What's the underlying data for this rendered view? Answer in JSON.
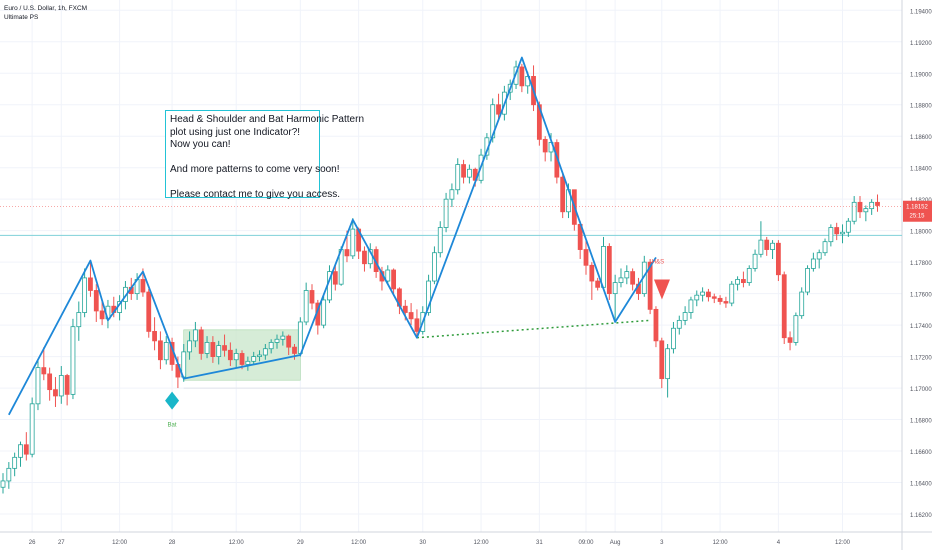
{
  "header": {
    "symbol": "Euro / U.S. Dollar, 1h, FXCM",
    "indicator": "Ultimate PS"
  },
  "annotation": {
    "lines": [
      "Head & Shoulder and Bat Harmonic Pattern",
      "plot using just one Indicator?!",
      "Now you can!",
      "",
      "And more patterns to come very soon!",
      "",
      "Please contact me to give you access."
    ]
  },
  "price_tag": {
    "price": "1.18152",
    "countdown": "25:15"
  },
  "colors": {
    "up": "#26a69a",
    "down": "#ef5350",
    "zigzag": "#1e88d8",
    "neckline": "#2e9b3a",
    "box_fill": "#c8e6c9",
    "horizontal": "#7fd1d8",
    "marker": "#19b6c9"
  },
  "chart_data": {
    "type": "candlestick",
    "title": "Euro / U.S. Dollar, 1h, FXCM",
    "xlabel": "",
    "ylabel": "",
    "ylim": [
      1.1615,
      1.195
    ],
    "grid": true,
    "y_ticks": [
      "1.19400",
      "1.19200",
      "1.19000",
      "1.18800",
      "1.18600",
      "1.18400",
      "1.18200",
      "1.18000",
      "1.17800",
      "1.17600",
      "1.17400",
      "1.17200",
      "1.17000",
      "1.16800",
      "1.16600",
      "1.16400",
      "1.16200"
    ],
    "x_ticks": [
      "26",
      "27",
      "12:00",
      "28",
      "12:00",
      "29",
      "12:00",
      "30",
      "12:00",
      "31",
      "09:00",
      "Aug",
      "3",
      "12:00",
      "4",
      "12:00"
    ],
    "current_price": 1.18152,
    "horizontal_level": 1.1797,
    "zigzag": [
      {
        "bar": 1,
        "price": 1.1683
      },
      {
        "bar": 15,
        "price": 1.1781
      },
      {
        "bar": 18,
        "price": 1.1743
      },
      {
        "bar": 24,
        "price": 1.1774
      },
      {
        "bar": 31,
        "price": 1.1706
      },
      {
        "bar": 51,
        "price": 1.1721
      },
      {
        "bar": 60,
        "price": 1.1807
      },
      {
        "bar": 71,
        "price": 1.1732
      },
      {
        "bar": 89,
        "price": 1.191
      },
      {
        "bar": 105,
        "price": 1.1742
      },
      {
        "bar": 112,
        "price": 1.1783
      }
    ],
    "neckline": [
      {
        "bar": 71,
        "price": 1.1732
      },
      {
        "bar": 111,
        "price": 1.1743
      }
    ],
    "bat_zone": {
      "bar_from": 31,
      "bar_to": 51,
      "price_low": 1.1705,
      "price_high": 1.1737
    },
    "support_line": {
      "bar_from": 31,
      "bar_to": 113,
      "price": 1.17
    },
    "bat_marker": {
      "bar": 29,
      "price": 1.1692,
      "label": "Bat"
    },
    "hs_marker": {
      "bar": 112,
      "price": 1.1769,
      "label": "H&S"
    },
    "candles": [
      [
        1.1637,
        1.1646,
        1.1633,
        1.1641
      ],
      [
        1.1641,
        1.1653,
        1.1636,
        1.1649
      ],
      [
        1.1649,
        1.1659,
        1.1644,
        1.1656
      ],
      [
        1.1656,
        1.1666,
        1.165,
        1.1664
      ],
      [
        1.1664,
        1.1672,
        1.1654,
        1.1658
      ],
      [
        1.1658,
        1.1694,
        1.1656,
        1.169
      ],
      [
        1.169,
        1.1718,
        1.1686,
        1.1713
      ],
      [
        1.1713,
        1.1726,
        1.1705,
        1.1709
      ],
      [
        1.1709,
        1.1713,
        1.1692,
        1.1699
      ],
      [
        1.1699,
        1.1707,
        1.1688,
        1.1695
      ],
      [
        1.1695,
        1.1714,
        1.169,
        1.1708
      ],
      [
        1.1708,
        1.1709,
        1.1689,
        1.1696
      ],
      [
        1.1696,
        1.1744,
        1.1693,
        1.1739
      ],
      [
        1.1739,
        1.1755,
        1.173,
        1.1748
      ],
      [
        1.1748,
        1.1776,
        1.1745,
        1.177
      ],
      [
        1.177,
        1.178,
        1.1758,
        1.1762
      ],
      [
        1.1762,
        1.1766,
        1.1742,
        1.1749
      ],
      [
        1.1749,
        1.1755,
        1.174,
        1.1744
      ],
      [
        1.1744,
        1.1756,
        1.1738,
        1.1752
      ],
      [
        1.1752,
        1.1758,
        1.1745,
        1.1748
      ],
      [
        1.1748,
        1.1759,
        1.1743,
        1.1755
      ],
      [
        1.1755,
        1.1768,
        1.175,
        1.1764
      ],
      [
        1.1764,
        1.177,
        1.1756,
        1.176
      ],
      [
        1.176,
        1.1773,
        1.1756,
        1.1769
      ],
      [
        1.1769,
        1.1776,
        1.1758,
        1.1761
      ],
      [
        1.1761,
        1.1763,
        1.1732,
        1.1736
      ],
      [
        1.1736,
        1.1745,
        1.1724,
        1.173
      ],
      [
        1.173,
        1.1736,
        1.1712,
        1.1718
      ],
      [
        1.1718,
        1.1733,
        1.1715,
        1.1729
      ],
      [
        1.1729,
        1.1732,
        1.1711,
        1.1715
      ],
      [
        1.1715,
        1.172,
        1.17,
        1.1707
      ],
      [
        1.1707,
        1.1728,
        1.1704,
        1.1723
      ],
      [
        1.1723,
        1.1736,
        1.1718,
        1.173
      ],
      [
        1.173,
        1.1742,
        1.1726,
        1.1737
      ],
      [
        1.1737,
        1.1739,
        1.1718,
        1.1722
      ],
      [
        1.1722,
        1.1733,
        1.1719,
        1.1729
      ],
      [
        1.1729,
        1.1733,
        1.1716,
        1.172
      ],
      [
        1.172,
        1.173,
        1.1715,
        1.1727
      ],
      [
        1.1727,
        1.1734,
        1.172,
        1.1724
      ],
      [
        1.1724,
        1.1729,
        1.1714,
        1.1718
      ],
      [
        1.1718,
        1.1725,
        1.1713,
        1.1722
      ],
      [
        1.1722,
        1.1724,
        1.1712,
        1.1715
      ],
      [
        1.1715,
        1.172,
        1.1711,
        1.1717
      ],
      [
        1.1717,
        1.1723,
        1.1715,
        1.172
      ],
      [
        1.172,
        1.1724,
        1.1717,
        1.1721
      ],
      [
        1.1721,
        1.1728,
        1.1718,
        1.1725
      ],
      [
        1.1725,
        1.1731,
        1.1722,
        1.1729
      ],
      [
        1.1729,
        1.1734,
        1.1725,
        1.1731
      ],
      [
        1.1731,
        1.1736,
        1.1727,
        1.1733
      ],
      [
        1.1733,
        1.1734,
        1.1721,
        1.1726
      ],
      [
        1.1726,
        1.1728,
        1.1718,
        1.1722
      ],
      [
        1.1722,
        1.1745,
        1.172,
        1.1742
      ],
      [
        1.1742,
        1.1767,
        1.174,
        1.1762
      ],
      [
        1.1762,
        1.1766,
        1.175,
        1.1754
      ],
      [
        1.1754,
        1.1756,
        1.1734,
        1.174
      ],
      [
        1.174,
        1.176,
        1.1738,
        1.1756
      ],
      [
        1.1756,
        1.1778,
        1.1754,
        1.1774
      ],
      [
        1.1774,
        1.1779,
        1.1762,
        1.1766
      ],
      [
        1.1766,
        1.179,
        1.1765,
        1.1788
      ],
      [
        1.1788,
        1.18,
        1.178,
        1.1784
      ],
      [
        1.1784,
        1.1808,
        1.1782,
        1.1801
      ],
      [
        1.1801,
        1.1802,
        1.1782,
        1.1787
      ],
      [
        1.1787,
        1.179,
        1.1774,
        1.1779
      ],
      [
        1.1779,
        1.1792,
        1.1776,
        1.1788
      ],
      [
        1.1788,
        1.179,
        1.177,
        1.1774
      ],
      [
        1.1774,
        1.1777,
        1.1762,
        1.1768
      ],
      [
        1.1768,
        1.1778,
        1.1766,
        1.1775
      ],
      [
        1.1775,
        1.1776,
        1.176,
        1.1763
      ],
      [
        1.1763,
        1.1764,
        1.1747,
        1.1752
      ],
      [
        1.1752,
        1.1756,
        1.1743,
        1.1748
      ],
      [
        1.1748,
        1.1754,
        1.174,
        1.1744
      ],
      [
        1.1744,
        1.175,
        1.1732,
        1.1736
      ],
      [
        1.1736,
        1.1752,
        1.1734,
        1.1748
      ],
      [
        1.1748,
        1.1772,
        1.1746,
        1.1768
      ],
      [
        1.1768,
        1.179,
        1.1766,
        1.1786
      ],
      [
        1.1786,
        1.1806,
        1.1783,
        1.1802
      ],
      [
        1.1802,
        1.1824,
        1.1799,
        1.182
      ],
      [
        1.182,
        1.183,
        1.1815,
        1.1826
      ],
      [
        1.1826,
        1.1846,
        1.1823,
        1.1842
      ],
      [
        1.1842,
        1.1845,
        1.183,
        1.1834
      ],
      [
        1.1834,
        1.1842,
        1.183,
        1.1839
      ],
      [
        1.1839,
        1.184,
        1.1828,
        1.1832
      ],
      [
        1.1832,
        1.1852,
        1.183,
        1.1848
      ],
      [
        1.1848,
        1.1862,
        1.1845,
        1.1859
      ],
      [
        1.1859,
        1.1884,
        1.1856,
        1.188
      ],
      [
        1.188,
        1.1887,
        1.187,
        1.1874
      ],
      [
        1.1874,
        1.1892,
        1.187,
        1.1888
      ],
      [
        1.1888,
        1.1896,
        1.1883,
        1.1893
      ],
      [
        1.1893,
        1.1908,
        1.189,
        1.1904
      ],
      [
        1.1904,
        1.1906,
        1.1888,
        1.1892
      ],
      [
        1.1892,
        1.1901,
        1.1887,
        1.1898
      ],
      [
        1.1898,
        1.1905,
        1.1876,
        1.188
      ],
      [
        1.188,
        1.1882,
        1.1854,
        1.1858
      ],
      [
        1.1858,
        1.186,
        1.1844,
        1.185
      ],
      [
        1.185,
        1.1862,
        1.1844,
        1.1856
      ],
      [
        1.1856,
        1.1858,
        1.183,
        1.1834
      ],
      [
        1.1834,
        1.1836,
        1.1808,
        1.1812
      ],
      [
        1.1812,
        1.183,
        1.1808,
        1.1826
      ],
      [
        1.1826,
        1.1826,
        1.18,
        1.1804
      ],
      [
        1.1804,
        1.1806,
        1.1782,
        1.1788
      ],
      [
        1.1788,
        1.1795,
        1.1772,
        1.1778
      ],
      [
        1.1778,
        1.178,
        1.1756,
        1.1768
      ],
      [
        1.1768,
        1.177,
        1.1762,
        1.1764
      ],
      [
        1.1764,
        1.1796,
        1.1762,
        1.179
      ],
      [
        1.179,
        1.1792,
        1.1756,
        1.176
      ],
      [
        1.176,
        1.1772,
        1.1742,
        1.1767
      ],
      [
        1.1767,
        1.1776,
        1.1764,
        1.177
      ],
      [
        1.177,
        1.1778,
        1.1766,
        1.1774
      ],
      [
        1.1774,
        1.1776,
        1.1762,
        1.1766
      ],
      [
        1.1766,
        1.177,
        1.1756,
        1.176
      ],
      [
        1.176,
        1.1784,
        1.1758,
        1.178
      ],
      [
        1.178,
        1.1782,
        1.1747,
        1.175
      ],
      [
        1.175,
        1.1752,
        1.1726,
        1.173
      ],
      [
        1.173,
        1.1732,
        1.17,
        1.1706
      ],
      [
        1.1706,
        1.1728,
        1.1694,
        1.1725
      ],
      [
        1.1725,
        1.1742,
        1.1722,
        1.1738
      ],
      [
        1.1738,
        1.1746,
        1.1734,
        1.1743
      ],
      [
        1.1743,
        1.1752,
        1.174,
        1.1748
      ],
      [
        1.1748,
        1.1758,
        1.1744,
        1.1756
      ],
      [
        1.1756,
        1.1762,
        1.1752,
        1.1759
      ],
      [
        1.1759,
        1.1764,
        1.1755,
        1.1761
      ],
      [
        1.1761,
        1.1763,
        1.1755,
        1.1758
      ],
      [
        1.1758,
        1.176,
        1.1754,
        1.1757
      ],
      [
        1.1757,
        1.1759,
        1.1753,
        1.1755
      ],
      [
        1.1755,
        1.1758,
        1.1751,
        1.1754
      ],
      [
        1.1754,
        1.1768,
        1.1752,
        1.1766
      ],
      [
        1.1766,
        1.1771,
        1.1762,
        1.1769
      ],
      [
        1.1769,
        1.1774,
        1.1764,
        1.1767
      ],
      [
        1.1767,
        1.1778,
        1.1765,
        1.1776
      ],
      [
        1.1776,
        1.1788,
        1.1774,
        1.1785
      ],
      [
        1.1785,
        1.1806,
        1.1783,
        1.1794
      ],
      [
        1.1794,
        1.1796,
        1.1784,
        1.1788
      ],
      [
        1.1788,
        1.1794,
        1.1782,
        1.1792
      ],
      [
        1.1792,
        1.1794,
        1.1768,
        1.1772
      ],
      [
        1.1772,
        1.1774,
        1.1728,
        1.1732
      ],
      [
        1.1732,
        1.1736,
        1.1724,
        1.1729
      ],
      [
        1.1729,
        1.1748,
        1.1727,
        1.1746
      ],
      [
        1.1746,
        1.1764,
        1.1744,
        1.1761
      ],
      [
        1.1761,
        1.1778,
        1.1759,
        1.1776
      ],
      [
        1.1776,
        1.1786,
        1.1774,
        1.1782
      ],
      [
        1.1782,
        1.1788,
        1.1776,
        1.1786
      ],
      [
        1.1786,
        1.1795,
        1.1784,
        1.1793
      ],
      [
        1.1793,
        1.1804,
        1.179,
        1.1802
      ],
      [
        1.1802,
        1.1805,
        1.1794,
        1.1798
      ],
      [
        1.1798,
        1.1804,
        1.1792,
        1.1799
      ],
      [
        1.1799,
        1.1808,
        1.1796,
        1.1806
      ],
      [
        1.1806,
        1.1822,
        1.1804,
        1.1818
      ],
      [
        1.1818,
        1.1822,
        1.1808,
        1.1812
      ],
      [
        1.1812,
        1.1816,
        1.1806,
        1.1814
      ],
      [
        1.1814,
        1.182,
        1.181,
        1.1818
      ],
      [
        1.1818,
        1.1823,
        1.1812,
        1.1816
      ]
    ]
  }
}
